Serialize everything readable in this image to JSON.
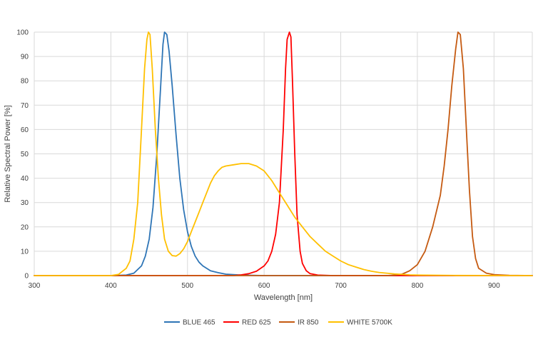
{
  "chart_data": {
    "type": "line",
    "title": "",
    "xlabel": "Wavelength [nm]",
    "ylabel": "Relative Spectral Power [%]",
    "xlim": [
      300,
      950
    ],
    "ylim": [
      0,
      100
    ],
    "x_ticks": [
      300,
      400,
      500,
      600,
      700,
      800,
      900
    ],
    "y_ticks": [
      0,
      10,
      20,
      30,
      40,
      50,
      60,
      70,
      80,
      90,
      100
    ],
    "grid": true,
    "legend_position": "bottom",
    "series": [
      {
        "name": "BLUE 465",
        "color": "#2e75b6",
        "points": [
          [
            300,
            0
          ],
          [
            400,
            0
          ],
          [
            420,
            0.2
          ],
          [
            430,
            1
          ],
          [
            440,
            4
          ],
          [
            445,
            8
          ],
          [
            450,
            15
          ],
          [
            455,
            28
          ],
          [
            460,
            50
          ],
          [
            465,
            78
          ],
          [
            468,
            95
          ],
          [
            470,
            100
          ],
          [
            473,
            99
          ],
          [
            476,
            92
          ],
          [
            480,
            78
          ],
          [
            485,
            58
          ],
          [
            490,
            40
          ],
          [
            495,
            27
          ],
          [
            500,
            18
          ],
          [
            505,
            12
          ],
          [
            510,
            8
          ],
          [
            515,
            5.5
          ],
          [
            520,
            4
          ],
          [
            530,
            2
          ],
          [
            540,
            1.2
          ],
          [
            550,
            0.6
          ],
          [
            570,
            0.2
          ],
          [
            600,
            0
          ],
          [
            950,
            0
          ]
        ]
      },
      {
        "name": "RED 625",
        "color": "#ff0000",
        "points": [
          [
            300,
            0
          ],
          [
            560,
            0
          ],
          [
            570,
            0.3
          ],
          [
            580,
            0.8
          ],
          [
            590,
            1.8
          ],
          [
            600,
            4
          ],
          [
            605,
            6
          ],
          [
            610,
            10
          ],
          [
            615,
            17
          ],
          [
            620,
            30
          ],
          [
            625,
            60
          ],
          [
            628,
            85
          ],
          [
            630,
            97
          ],
          [
            633,
            100
          ],
          [
            635,
            98
          ],
          [
            637,
            80
          ],
          [
            640,
            50
          ],
          [
            643,
            25
          ],
          [
            647,
            10
          ],
          [
            650,
            5
          ],
          [
            655,
            2
          ],
          [
            660,
            0.8
          ],
          [
            670,
            0.2
          ],
          [
            690,
            0
          ],
          [
            950,
            0
          ]
        ]
      },
      {
        "name": "IR 850",
        "color": "#c55a11",
        "points": [
          [
            300,
            0
          ],
          [
            760,
            0
          ],
          [
            770,
            0.2
          ],
          [
            780,
            0.6
          ],
          [
            790,
            2
          ],
          [
            800,
            4.5
          ],
          [
            810,
            10
          ],
          [
            820,
            20
          ],
          [
            830,
            33
          ],
          [
            835,
            45
          ],
          [
            840,
            60
          ],
          [
            845,
            78
          ],
          [
            850,
            93
          ],
          [
            853,
            100
          ],
          [
            856,
            99
          ],
          [
            860,
            85
          ],
          [
            864,
            60
          ],
          [
            868,
            35
          ],
          [
            872,
            16
          ],
          [
            876,
            7
          ],
          [
            880,
            3
          ],
          [
            890,
            1
          ],
          [
            900,
            0.4
          ],
          [
            920,
            0.1
          ],
          [
            950,
            0
          ]
        ]
      },
      {
        "name": "WHITE 5700K",
        "color": "#ffc000",
        "points": [
          [
            300,
            0
          ],
          [
            400,
            0
          ],
          [
            410,
            0.5
          ],
          [
            420,
            3
          ],
          [
            425,
            6
          ],
          [
            430,
            15
          ],
          [
            435,
            30
          ],
          [
            440,
            60
          ],
          [
            444,
            85
          ],
          [
            447,
            97
          ],
          [
            449,
            100
          ],
          [
            451,
            99
          ],
          [
            454,
            85
          ],
          [
            458,
            60
          ],
          [
            462,
            40
          ],
          [
            466,
            25
          ],
          [
            470,
            15
          ],
          [
            475,
            10
          ],
          [
            480,
            8.2
          ],
          [
            485,
            8
          ],
          [
            490,
            9
          ],
          [
            495,
            11
          ],
          [
            500,
            14
          ],
          [
            505,
            18
          ],
          [
            510,
            22
          ],
          [
            515,
            26
          ],
          [
            520,
            30
          ],
          [
            525,
            34
          ],
          [
            530,
            38
          ],
          [
            535,
            41
          ],
          [
            540,
            43
          ],
          [
            545,
            44.5
          ],
          [
            550,
            45
          ],
          [
            560,
            45.5
          ],
          [
            570,
            46
          ],
          [
            580,
            46
          ],
          [
            590,
            45
          ],
          [
            600,
            43
          ],
          [
            610,
            39
          ],
          [
            620,
            34
          ],
          [
            630,
            29
          ],
          [
            640,
            24
          ],
          [
            650,
            20
          ],
          [
            660,
            16
          ],
          [
            670,
            13
          ],
          [
            680,
            10
          ],
          [
            690,
            8
          ],
          [
            700,
            6
          ],
          [
            710,
            4.5
          ],
          [
            720,
            3.5
          ],
          [
            730,
            2.5
          ],
          [
            740,
            1.8
          ],
          [
            750,
            1.3
          ],
          [
            760,
            1
          ],
          [
            770,
            0.7
          ],
          [
            780,
            0.5
          ],
          [
            790,
            0.3
          ],
          [
            800,
            0.2
          ],
          [
            850,
            0.05
          ],
          [
            950,
            0
          ]
        ]
      }
    ]
  }
}
